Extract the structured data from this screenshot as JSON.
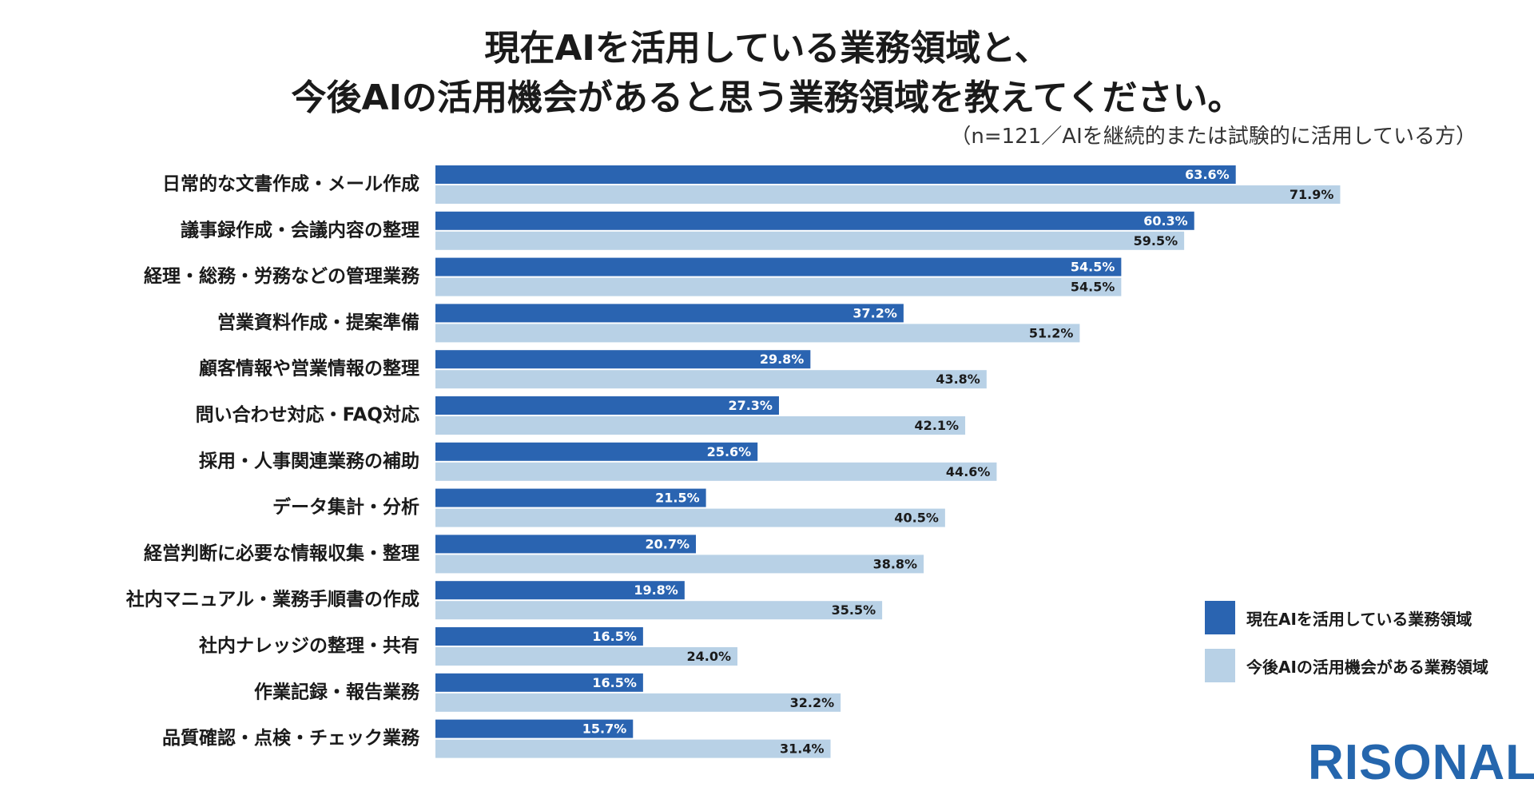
{
  "title": {
    "line1": "現在AIを活用している業務領域と、",
    "line2": "今後AIの活用機会があると思う業務領域を教えてください。"
  },
  "subtitle": "（n=121／AIを継続的または試験的に活用している方）",
  "colors": {
    "current": "#2a64b1",
    "future": "#b8d1e6",
    "text": "#1a1a1a",
    "logo": "#2566ad"
  },
  "logo": "RISONAL",
  "legend": {
    "current": "現在AIを活用している業務領域",
    "future": "今後AIの活用機会がある業務領域"
  },
  "chart_data": {
    "type": "bar",
    "orientation": "horizontal",
    "xlim": [
      0,
      100
    ],
    "categories": [
      "日常的な文書作成・メール作成",
      "議事録作成・会議内容の整理",
      "経理・総務・労務などの管理業務",
      "営業資料作成・提案準備",
      "顧客情報や営業情報の整理",
      "問い合わせ対応・FAQ対応",
      "採用・人事関連業務の補助",
      "データ集計・分析",
      "経営判断に必要な情報収集・整理",
      "社内マニュアル・業務手順書の作成",
      "社内ナレッジの整理・共有",
      "作業記録・報告業務",
      "品質確認・点検・チェック業務"
    ],
    "series": [
      {
        "name": "現在AIを活用している業務領域",
        "values": [
          63.6,
          60.3,
          54.5,
          37.2,
          29.8,
          27.3,
          25.6,
          21.5,
          20.7,
          19.8,
          16.5,
          16.5,
          15.7
        ],
        "labels": [
          "63.6%",
          "60.3%",
          "54.5%",
          "37.2%",
          "29.8%",
          "27.3%",
          "25.6%",
          "21.5%",
          "20.7%",
          "19.8%",
          "16.5%",
          "16.5%",
          "15.7%"
        ]
      },
      {
        "name": "今後AIの活用機会がある業務領域",
        "values": [
          71.9,
          59.5,
          54.5,
          51.2,
          43.8,
          42.1,
          44.6,
          40.5,
          38.8,
          35.5,
          24.0,
          32.2,
          31.4
        ],
        "labels": [
          "71.9%",
          "59.5%",
          "54.5%",
          "51.2%",
          "43.8%",
          "42.1%",
          "44.6%",
          "40.5%",
          "38.8%",
          "35.5%",
          "24.0%",
          "32.2%",
          "31.4%"
        ]
      }
    ]
  }
}
